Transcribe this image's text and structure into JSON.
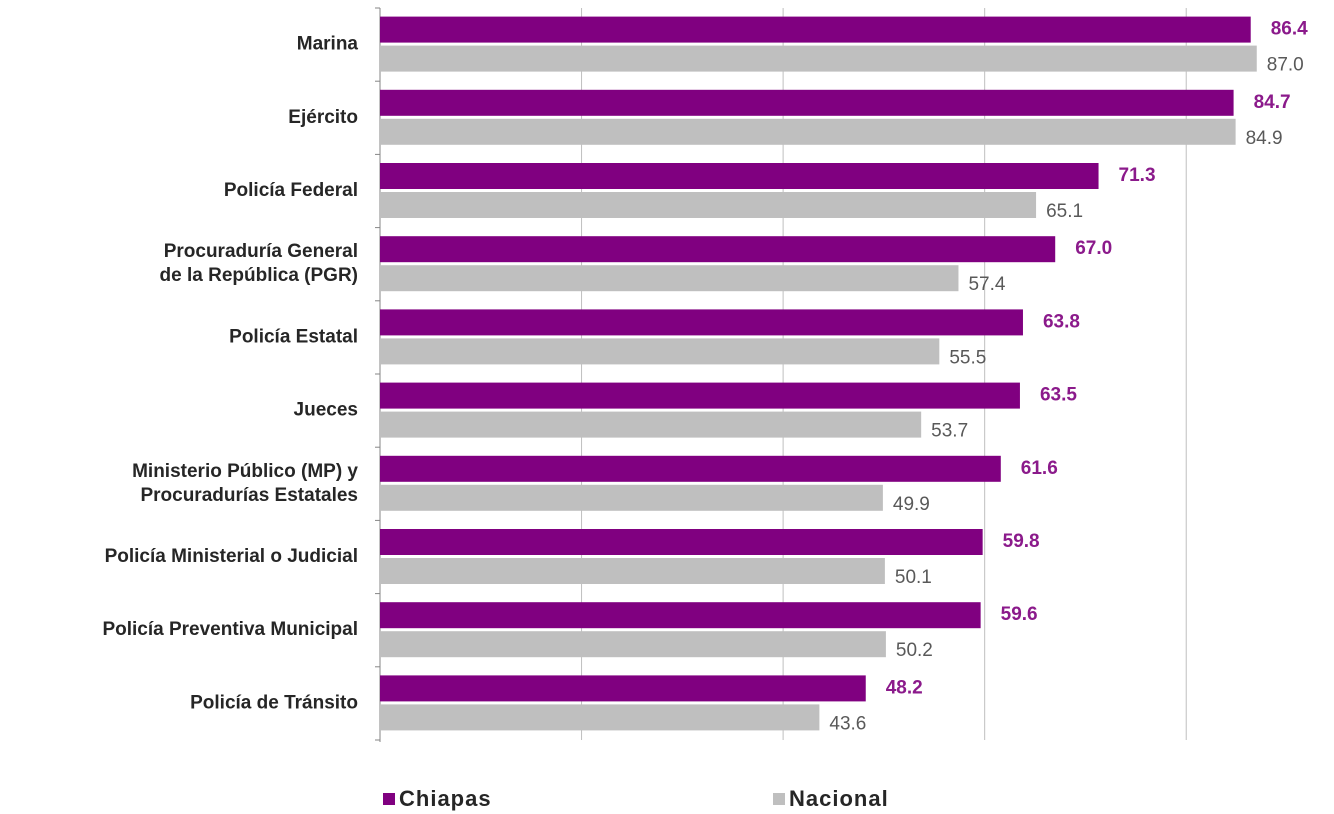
{
  "chart_data": {
    "type": "bar",
    "orientation": "horizontal",
    "categories": [
      "Marina",
      "Ejército",
      "Policía Federal",
      "Procuraduría General\nde la República (PGR)",
      "Policía Estatal",
      "Jueces",
      "Ministerio Público (MP) y\nProcuradurías Estatales",
      "Policía Ministerial o Judicial",
      "Policía Preventiva Municipal",
      "Policía de Tránsito"
    ],
    "series": [
      {
        "name": "Chiapas",
        "color": "#800080",
        "values": [
          86.4,
          84.7,
          71.3,
          67.0,
          63.8,
          63.5,
          61.6,
          59.8,
          59.6,
          48.2
        ],
        "value_labels": [
          "86.4",
          "84.7",
          "71.3",
          "67.0",
          "63.8",
          "63.5",
          "61.6",
          "59.8",
          "59.6",
          "48.2"
        ]
      },
      {
        "name": "Nacional",
        "color": "#bfbfbf",
        "values": [
          87.0,
          84.9,
          65.1,
          57.4,
          55.5,
          53.7,
          49.9,
          50.1,
          50.2,
          43.6
        ],
        "value_labels": [
          "87.0",
          "84.9",
          "65.1",
          "57.4",
          "55.5",
          "53.7",
          "49.9",
          "50.1",
          "50.2",
          "43.6"
        ]
      }
    ],
    "xlim": [
      0,
      90
    ],
    "xticks": [
      0,
      20,
      40,
      60,
      80
    ],
    "grid": true,
    "legend": "bottom"
  }
}
